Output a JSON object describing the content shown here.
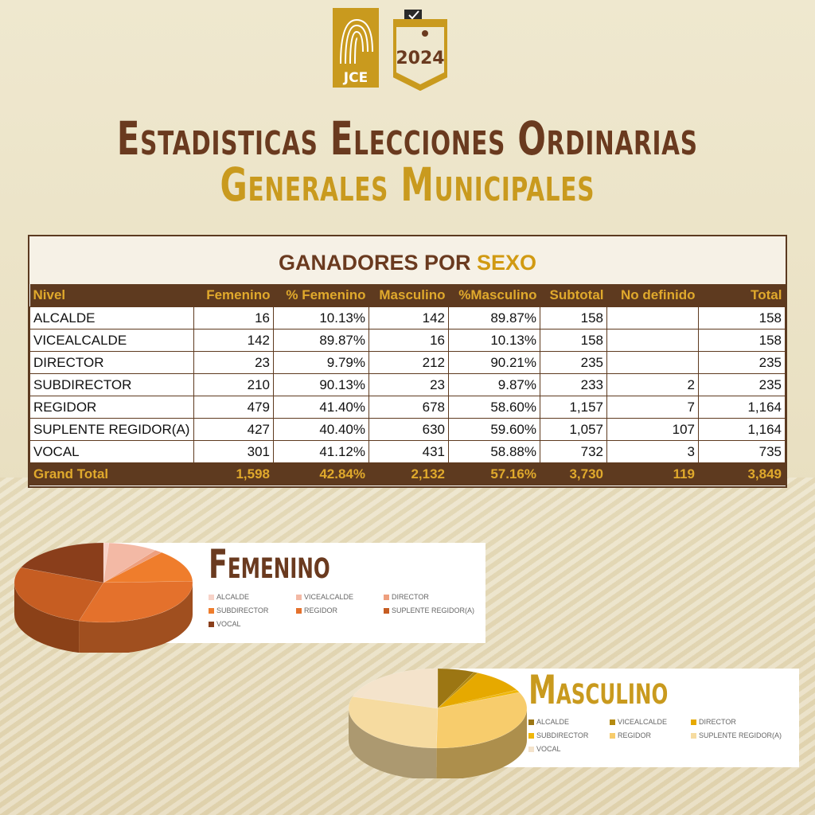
{
  "header": {
    "logo_jce_text": "JCE",
    "logo_year_text": "2024",
    "title_line1": "Estadisticas Elecciones Ordinarias",
    "title_line2": "Generales Municipales"
  },
  "table": {
    "title_main": "GANADORES POR ",
    "title_accent": "SEXO",
    "columns": [
      "Nivel",
      "Femenino",
      "% Femenino",
      "Masculino",
      "%Masculino",
      "Subtotal",
      "No definido",
      "Total"
    ],
    "rows": [
      [
        "ALCALDE",
        "16",
        "10.13%",
        "142",
        "89.87%",
        "158",
        "",
        "158"
      ],
      [
        "VICEALCALDE",
        "142",
        "89.87%",
        "16",
        "10.13%",
        "158",
        "",
        "158"
      ],
      [
        "DIRECTOR",
        "23",
        "9.79%",
        "212",
        "90.21%",
        "235",
        "",
        "235"
      ],
      [
        "SUBDIRECTOR",
        "210",
        "90.13%",
        "23",
        "9.87%",
        "233",
        "2",
        "235"
      ],
      [
        "REGIDOR",
        "479",
        "41.40%",
        "678",
        "58.60%",
        "1,157",
        "7",
        "1,164"
      ],
      [
        "SUPLENTE REGIDOR(A)",
        "427",
        "40.40%",
        "630",
        "59.60%",
        "1,057",
        "107",
        "1,164"
      ],
      [
        "VOCAL",
        "301",
        "41.12%",
        "431",
        "58.88%",
        "732",
        "3",
        "735"
      ]
    ],
    "total": [
      "Grand Total",
      "1,598",
      "42.84%",
      "2,132",
      "57.16%",
      "3,730",
      "119",
      "3,849"
    ]
  },
  "chart_data": [
    {
      "type": "pie",
      "title": "Femenino",
      "categories": [
        "ALCALDE",
        "VICEALCALDE",
        "DIRECTOR",
        "SUBDIRECTOR",
        "REGIDOR",
        "SUPLENTE REGIDOR(A)",
        "VOCAL"
      ],
      "values": [
        16,
        142,
        23,
        210,
        479,
        427,
        301
      ],
      "colors": [
        "#f7d3c8",
        "#f3b9a5",
        "#ee9f7e",
        "#ef7d2c",
        "#e4712c",
        "#c65d22",
        "#8a3e1b"
      ],
      "legend": "right"
    },
    {
      "type": "pie",
      "title": "Masculino",
      "categories": [
        "ALCALDE",
        "VICEALCALDE",
        "DIRECTOR",
        "SUBDIRECTOR",
        "REGIDOR",
        "SUPLENTE REGIDOR(A)",
        "VOCAL"
      ],
      "values": [
        142,
        16,
        212,
        23,
        678,
        630,
        431
      ],
      "colors": [
        "#9c7613",
        "#b48a0f",
        "#e6a900",
        "#f0b70a",
        "#f7cc6c",
        "#f6dba0",
        "#f4e3cb"
      ],
      "legend": "right"
    }
  ],
  "colors": {
    "brown": "#5e3a1f",
    "gold": "#c99a1e",
    "background": "#ece4c8"
  }
}
